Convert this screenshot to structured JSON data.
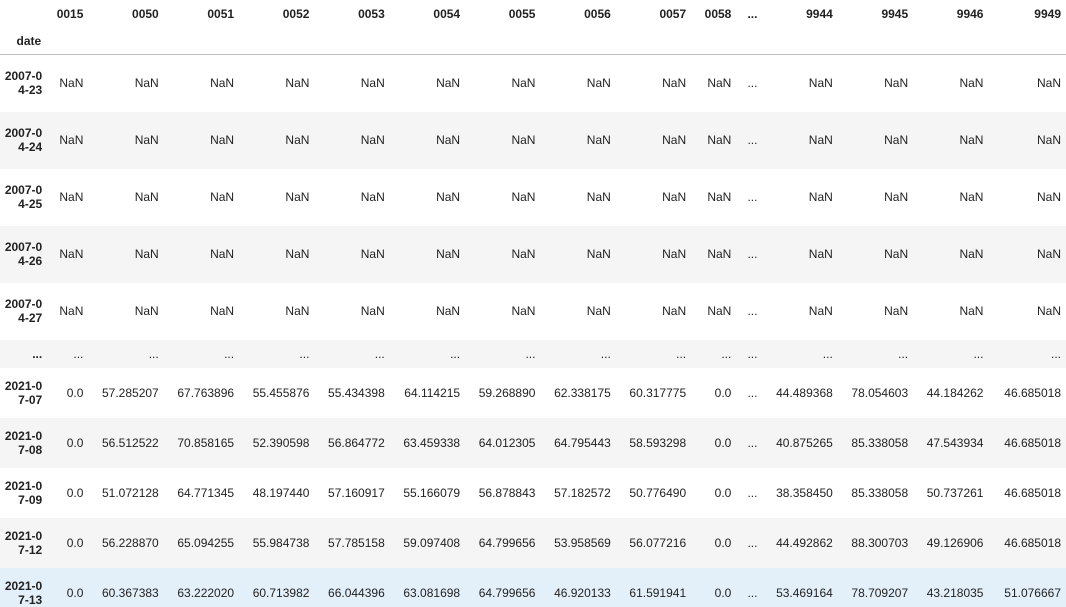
{
  "table": {
    "index_name": "date",
    "columns": [
      "0015",
      "0050",
      "0051",
      "0052",
      "0053",
      "0054",
      "0055",
      "0056",
      "0057",
      "0058",
      "...",
      "9944",
      "9945",
      "9946",
      "9949"
    ],
    "rows": [
      {
        "index": "2007-04-23",
        "cells": [
          "NaN",
          "NaN",
          "NaN",
          "NaN",
          "NaN",
          "NaN",
          "NaN",
          "NaN",
          "NaN",
          "NaN",
          "...",
          "NaN",
          "NaN",
          "NaN",
          "NaN"
        ]
      },
      {
        "index": "2007-04-24",
        "cells": [
          "NaN",
          "NaN",
          "NaN",
          "NaN",
          "NaN",
          "NaN",
          "NaN",
          "NaN",
          "NaN",
          "NaN",
          "...",
          "NaN",
          "NaN",
          "NaN",
          "NaN"
        ]
      },
      {
        "index": "2007-04-25",
        "cells": [
          "NaN",
          "NaN",
          "NaN",
          "NaN",
          "NaN",
          "NaN",
          "NaN",
          "NaN",
          "NaN",
          "NaN",
          "...",
          "NaN",
          "NaN",
          "NaN",
          "NaN"
        ]
      },
      {
        "index": "2007-04-26",
        "cells": [
          "NaN",
          "NaN",
          "NaN",
          "NaN",
          "NaN",
          "NaN",
          "NaN",
          "NaN",
          "NaN",
          "NaN",
          "...",
          "NaN",
          "NaN",
          "NaN",
          "NaN"
        ]
      },
      {
        "index": "2007-04-27",
        "cells": [
          "NaN",
          "NaN",
          "NaN",
          "NaN",
          "NaN",
          "NaN",
          "NaN",
          "NaN",
          "NaN",
          "NaN",
          "...",
          "NaN",
          "NaN",
          "NaN",
          "NaN"
        ]
      },
      {
        "index": "...",
        "cells": [
          "...",
          "...",
          "...",
          "...",
          "...",
          "...",
          "...",
          "...",
          "...",
          "...",
          "...",
          "...",
          "...",
          "...",
          "..."
        ]
      },
      {
        "index": "2021-07-07",
        "cells": [
          "0.0",
          "57.285207",
          "67.763896",
          "55.455876",
          "55.434398",
          "64.114215",
          "59.268890",
          "62.338175",
          "60.317775",
          "0.0",
          "...",
          "44.489368",
          "78.054603",
          "44.184262",
          "46.685018"
        ]
      },
      {
        "index": "2021-07-08",
        "cells": [
          "0.0",
          "56.512522",
          "70.858165",
          "52.390598",
          "56.864772",
          "63.459338",
          "64.012305",
          "64.795443",
          "58.593298",
          "0.0",
          "...",
          "40.875265",
          "85.338058",
          "47.543934",
          "46.685018"
        ]
      },
      {
        "index": "2021-07-09",
        "cells": [
          "0.0",
          "51.072128",
          "64.771345",
          "48.197440",
          "57.160917",
          "55.166079",
          "56.878843",
          "57.182572",
          "50.776490",
          "0.0",
          "...",
          "38.358450",
          "85.338058",
          "50.737261",
          "46.685018"
        ]
      },
      {
        "index": "2021-07-12",
        "cells": [
          "0.0",
          "56.228870",
          "65.094255",
          "55.984738",
          "57.785158",
          "59.097408",
          "64.799656",
          "53.958569",
          "56.077216",
          "0.0",
          "...",
          "44.492862",
          "88.300703",
          "49.126906",
          "46.685018"
        ]
      },
      {
        "index": "2021-07-13",
        "cells": [
          "0.0",
          "60.367383",
          "63.222020",
          "60.713982",
          "66.044396",
          "63.081698",
          "64.799656",
          "46.920133",
          "61.591941",
          "0.0",
          "...",
          "53.469164",
          "78.709207",
          "43.218035",
          "51.076667"
        ]
      }
    ]
  }
}
